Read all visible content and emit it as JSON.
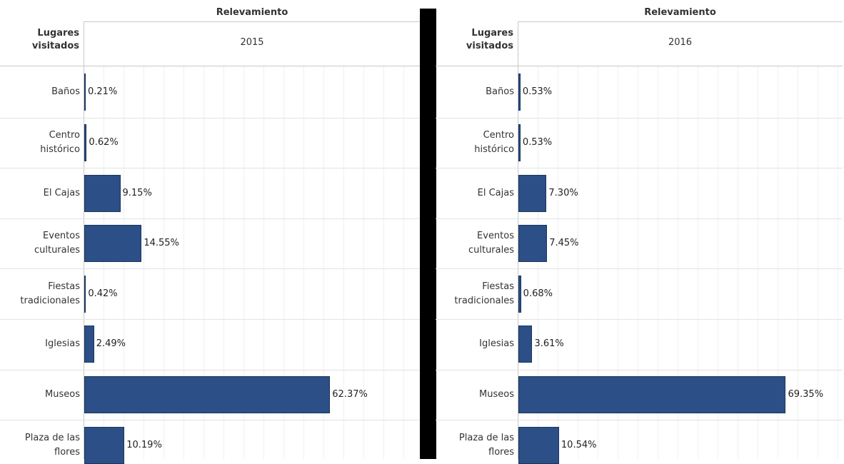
{
  "chart_data": [
    {
      "type": "bar",
      "orientation": "horizontal",
      "super_header": "Relevamiento",
      "row_header": "Lugares visitados",
      "column_header": "2015",
      "categories": [
        "Baños",
        "Centro histórico",
        "El Cajas",
        "Eventos culturales",
        "Fiestas tradicionales",
        "Iglesias",
        "Museos",
        "Plaza de las flores"
      ],
      "values": [
        0.21,
        0.62,
        9.15,
        14.55,
        0.42,
        2.49,
        62.37,
        10.19
      ],
      "value_labels": [
        "0.21%",
        "0.62%",
        "9.15%",
        "14.55%",
        "0.42%",
        "2.49%",
        "62.37%",
        "10.19%"
      ],
      "unit": "%",
      "xlim": [
        0,
        85
      ],
      "grid": true,
      "bar_color": "#2b4f86"
    },
    {
      "type": "bar",
      "orientation": "horizontal",
      "super_header": "Relevamiento",
      "row_header": "Lugares visitados",
      "column_header": "2016",
      "categories": [
        "Baños",
        "Centro histórico",
        "El Cajas",
        "Eventos culturales",
        "Fiestas tradicionales",
        "Iglesias",
        "Museos",
        "Plaza de las flores"
      ],
      "values": [
        0.53,
        0.53,
        7.3,
        7.45,
        0.68,
        3.61,
        69.35,
        10.54
      ],
      "value_labels": [
        "0.53%",
        "0.53%",
        "7.30%",
        "7.45%",
        "0.68%",
        "3.61%",
        "69.35%",
        "10.54%"
      ],
      "unit": "%",
      "xlim": [
        0,
        85
      ],
      "grid": true,
      "bar_color": "#2b4f86"
    }
  ]
}
